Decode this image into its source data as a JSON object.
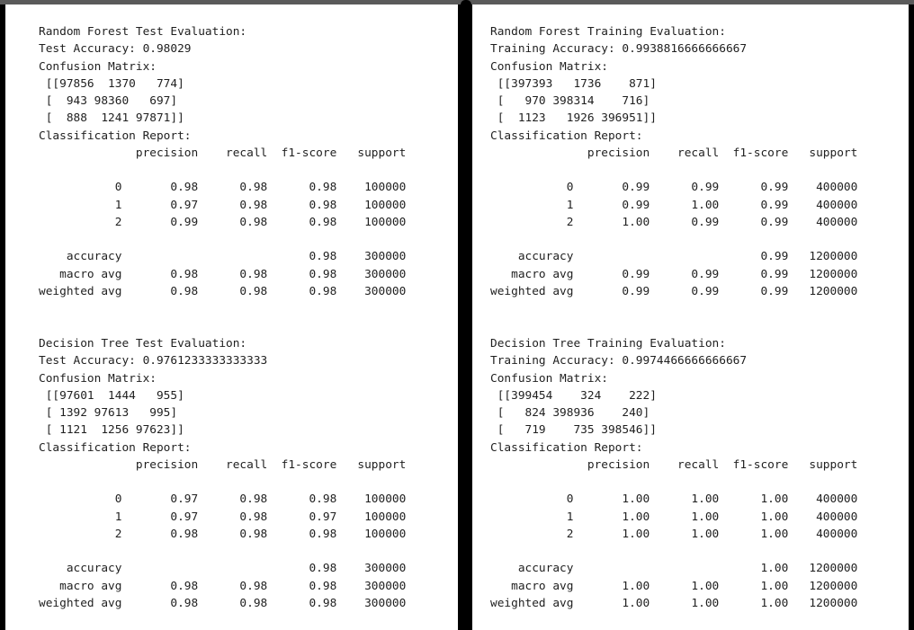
{
  "panels": {
    "left": {
      "blocks": [
        {
          "lines": [
            "Random Forest Test Evaluation:",
            "Test Accuracy: 0.98029",
            "Confusion Matrix:",
            " [[97856  1370   774]",
            " [  943 98360   697]",
            " [  888  1241 97871]]",
            "Classification Report:",
            "              precision    recall  f1-score   support",
            "",
            "           0       0.98      0.98      0.98    100000",
            "           1       0.97      0.98      0.98    100000",
            "           2       0.99      0.98      0.98    100000",
            "",
            "    accuracy                           0.98    300000",
            "   macro avg       0.98      0.98      0.98    300000",
            "weighted avg       0.98      0.98      0.98    300000"
          ]
        },
        {
          "lines": [
            "Decision Tree Test Evaluation:",
            "Test Accuracy: 0.9761233333333333",
            "Confusion Matrix:",
            " [[97601  1444   955]",
            " [ 1392 97613   995]",
            " [ 1121  1256 97623]]",
            "Classification Report:",
            "              precision    recall  f1-score   support",
            "",
            "           0       0.97      0.98      0.98    100000",
            "           1       0.97      0.98      0.97    100000",
            "           2       0.98      0.98      0.98    100000",
            "",
            "    accuracy                           0.98    300000",
            "   macro avg       0.98      0.98      0.98    300000",
            "weighted avg       0.98      0.98      0.98    300000"
          ]
        }
      ]
    },
    "right": {
      "blocks": [
        {
          "lines": [
            "Random Forest Training Evaluation:",
            "Training Accuracy: 0.9938816666666667",
            "Confusion Matrix:",
            " [[397393   1736    871]",
            " [   970 398314    716]",
            " [  1123   1926 396951]]",
            "Classification Report:",
            "              precision    recall  f1-score   support",
            "",
            "           0       0.99      0.99      0.99    400000",
            "           1       0.99      1.00      0.99    400000",
            "           2       1.00      0.99      0.99    400000",
            "",
            "    accuracy                           0.99   1200000",
            "   macro avg       0.99      0.99      0.99   1200000",
            "weighted avg       0.99      0.99      0.99   1200000"
          ]
        },
        {
          "lines": [
            "Decision Tree Training Evaluation:",
            "Training Accuracy: 0.9974466666666667",
            "Confusion Matrix:",
            " [[399454    324    222]",
            " [   824 398936    240]",
            " [   719    735 398546]]",
            "Classification Report:",
            "              precision    recall  f1-score   support",
            "",
            "           0       1.00      1.00      1.00    400000",
            "           1       1.00      1.00      1.00    400000",
            "           2       1.00      1.00      1.00    400000",
            "",
            "    accuracy                           1.00   1200000",
            "   macro avg       1.00      1.00      1.00   1200000",
            "weighted avg       1.00      1.00      1.00   1200000"
          ]
        }
      ]
    }
  }
}
